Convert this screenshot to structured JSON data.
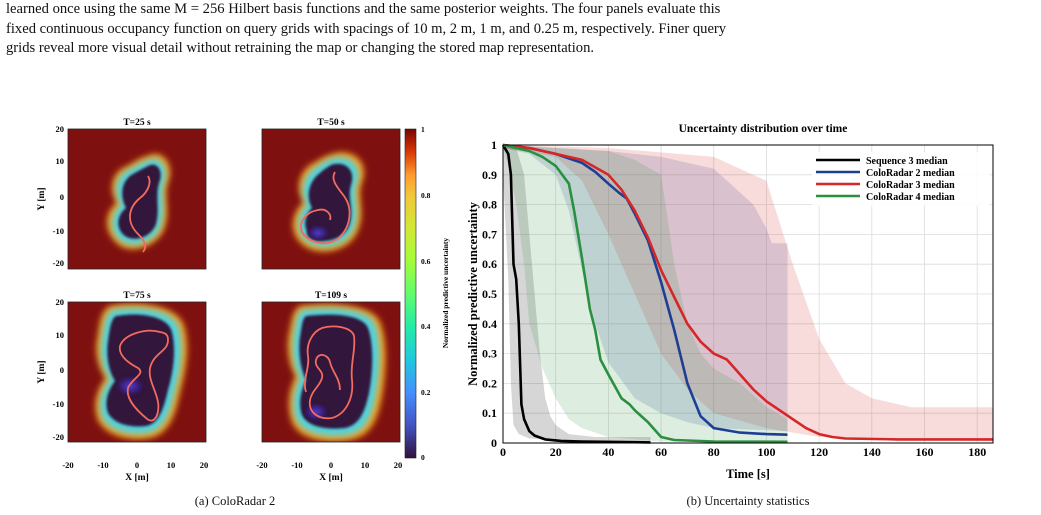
{
  "caption_lines": [
    "learned once using the same M = 256 Hilbert basis functions and the same posterior weights. The four panels evaluate this",
    "fixed continuous occupancy function on query grids with spacings of 10 m, 2 m, 1 m, and 0.25 m, respectively. Finer query",
    "grids reveal more visual detail without retraining the map or changing the stored map representation."
  ],
  "panel_a": {
    "subcaption": "(a) ColoRadar 2",
    "titles": [
      "T=25 s",
      "T=50 s",
      "T=75 s",
      "T=109 s"
    ],
    "xlabel": "X [m]",
    "ylabel": "Y [m]",
    "xticks": [
      "-20",
      "-10",
      "0",
      "10",
      "20"
    ],
    "yticks": [
      "20",
      "10",
      "0",
      "-10",
      "-20"
    ],
    "colorbar_label": "Normalized predictive uncertainty",
    "colorbar_ticks": [
      "1",
      "0.8",
      "0.6",
      "0.4",
      "0.2",
      "0"
    ]
  },
  "panel_b": {
    "subcaption": "(b) Uncertainty statistics"
  },
  "chart_data": {
    "type": "line",
    "title": "Uncertainty distribution over time",
    "xlabel": "Time [s]",
    "ylabel": "Normalized predictive uncertainty",
    "xlim": [
      0,
      186
    ],
    "ylim": [
      0,
      1
    ],
    "xticks": [
      0,
      20,
      40,
      60,
      80,
      100,
      120,
      140,
      160,
      180
    ],
    "yticks": [
      0,
      0.1,
      0.2,
      0.3,
      0.4,
      0.5,
      0.6,
      0.7,
      0.8,
      0.9,
      1
    ],
    "ytick_labels": [
      "0",
      "0.1",
      "0.2",
      "0.3",
      "0.4",
      "0.5",
      "0.6",
      "0.7",
      "0.8",
      "0.9",
      "1"
    ],
    "grid": true,
    "legend_position": "top-right",
    "series": [
      {
        "name": "Sequence 3 median",
        "color": "#000000",
        "median": [
          [
            0,
            1
          ],
          [
            2,
            0.97
          ],
          [
            3,
            0.9
          ],
          [
            4,
            0.6
          ],
          [
            5,
            0.55
          ],
          [
            6,
            0.4
          ],
          [
            7,
            0.13
          ],
          [
            8,
            0.08
          ],
          [
            10,
            0.04
          ],
          [
            12,
            0.025
          ],
          [
            16,
            0.012
          ],
          [
            22,
            0.007
          ],
          [
            30,
            0.005
          ],
          [
            56,
            0.002
          ]
        ],
        "upper": [
          [
            0,
            1
          ],
          [
            5,
            0.99
          ],
          [
            8,
            0.9
          ],
          [
            10,
            0.7
          ],
          [
            12,
            0.5
          ],
          [
            14,
            0.3
          ],
          [
            16,
            0.15
          ],
          [
            18,
            0.09
          ],
          [
            20,
            0.06
          ],
          [
            25,
            0.03
          ],
          [
            35,
            0.02
          ],
          [
            56,
            0.02
          ]
        ],
        "lower": [
          [
            0,
            0.9
          ],
          [
            2,
            0.55
          ],
          [
            3,
            0.2
          ],
          [
            4,
            0.06
          ],
          [
            6,
            0.03
          ],
          [
            10,
            0.015
          ],
          [
            20,
            0.01
          ],
          [
            56,
            0.003
          ]
        ]
      },
      {
        "name": "ColoRadar 2 median",
        "color": "#1c3f95",
        "median": [
          [
            0,
            1
          ],
          [
            10,
            0.99
          ],
          [
            20,
            0.97
          ],
          [
            30,
            0.94
          ],
          [
            35,
            0.91
          ],
          [
            40,
            0.87
          ],
          [
            44,
            0.84
          ],
          [
            47,
            0.82
          ],
          [
            50,
            0.77
          ],
          [
            55,
            0.68
          ],
          [
            60,
            0.54
          ],
          [
            65,
            0.38
          ],
          [
            70,
            0.2
          ],
          [
            75,
            0.09
          ],
          [
            80,
            0.05
          ],
          [
            90,
            0.035
          ],
          [
            100,
            0.03
          ],
          [
            108,
            0.028
          ]
        ],
        "upper": [
          [
            0,
            1
          ],
          [
            20,
            0.99
          ],
          [
            40,
            0.98
          ],
          [
            60,
            0.96
          ],
          [
            80,
            0.92
          ],
          [
            95,
            0.8
          ],
          [
            100,
            0.72
          ],
          [
            102,
            0.67
          ],
          [
            108,
            0.67
          ]
        ],
        "lower": [
          [
            0,
            0.99
          ],
          [
            10,
            0.97
          ],
          [
            20,
            0.9
          ],
          [
            25,
            0.78
          ],
          [
            30,
            0.58
          ],
          [
            35,
            0.4
          ],
          [
            40,
            0.27
          ],
          [
            50,
            0.15
          ],
          [
            60,
            0.1
          ],
          [
            70,
            0.07
          ],
          [
            80,
            0.05
          ],
          [
            108,
            0.04
          ]
        ]
      },
      {
        "name": "ColoRadar 3 median",
        "color": "#d62728",
        "median": [
          [
            0,
            1
          ],
          [
            10,
            0.99
          ],
          [
            20,
            0.97
          ],
          [
            30,
            0.95
          ],
          [
            40,
            0.9
          ],
          [
            45,
            0.85
          ],
          [
            50,
            0.78
          ],
          [
            55,
            0.69
          ],
          [
            60,
            0.58
          ],
          [
            65,
            0.49
          ],
          [
            70,
            0.4
          ],
          [
            75,
            0.34
          ],
          [
            80,
            0.3
          ],
          [
            85,
            0.28
          ],
          [
            88,
            0.25
          ],
          [
            95,
            0.18
          ],
          [
            100,
            0.14
          ],
          [
            110,
            0.08
          ],
          [
            115,
            0.05
          ],
          [
            120,
            0.03
          ],
          [
            125,
            0.02
          ],
          [
            130,
            0.015
          ],
          [
            150,
            0.012
          ],
          [
            186,
            0.012
          ]
        ],
        "upper": [
          [
            0,
            1
          ],
          [
            40,
            0.99
          ],
          [
            80,
            0.96
          ],
          [
            100,
            0.88
          ],
          [
            110,
            0.6
          ],
          [
            120,
            0.35
          ],
          [
            130,
            0.2
          ],
          [
            140,
            0.15
          ],
          [
            155,
            0.12
          ],
          [
            186,
            0.12
          ]
        ],
        "lower": [
          [
            0,
            0.99
          ],
          [
            20,
            0.96
          ],
          [
            30,
            0.88
          ],
          [
            40,
            0.7
          ],
          [
            50,
            0.5
          ],
          [
            60,
            0.3
          ],
          [
            70,
            0.18
          ],
          [
            80,
            0.1
          ],
          [
            100,
            0.05
          ],
          [
            120,
            0.02
          ],
          [
            186,
            0.005
          ]
        ]
      },
      {
        "name": "ColoRadar 4 median",
        "color": "#2a9040",
        "median": [
          [
            0,
            1
          ],
          [
            5,
            0.99
          ],
          [
            10,
            0.98
          ],
          [
            15,
            0.96
          ],
          [
            20,
            0.93
          ],
          [
            25,
            0.87
          ],
          [
            27,
            0.78
          ],
          [
            30,
            0.62
          ],
          [
            33,
            0.45
          ],
          [
            35,
            0.38
          ],
          [
            37,
            0.28
          ],
          [
            40,
            0.23
          ],
          [
            45,
            0.15
          ],
          [
            48,
            0.13
          ],
          [
            50,
            0.11
          ],
          [
            55,
            0.07
          ],
          [
            60,
            0.02
          ],
          [
            65,
            0.01
          ],
          [
            80,
            0.005
          ],
          [
            108,
            0.004
          ]
        ],
        "upper": [
          [
            0,
            1
          ],
          [
            20,
            0.99
          ],
          [
            40,
            0.98
          ],
          [
            50,
            0.95
          ],
          [
            60,
            0.9
          ],
          [
            65,
            0.6
          ],
          [
            70,
            0.4
          ],
          [
            75,
            0.3
          ],
          [
            80,
            0.25
          ],
          [
            90,
            0.2
          ],
          [
            100,
            0.12
          ],
          [
            108,
            0.08
          ]
        ],
        "lower": [
          [
            0,
            0.99
          ],
          [
            3,
            0.9
          ],
          [
            5,
            0.8
          ],
          [
            8,
            0.6
          ],
          [
            10,
            0.4
          ],
          [
            15,
            0.25
          ],
          [
            20,
            0.15
          ],
          [
            25,
            0.08
          ],
          [
            30,
            0.05
          ],
          [
            40,
            0.02
          ],
          [
            60,
            0.005
          ],
          [
            108,
            0.003
          ]
        ]
      }
    ]
  },
  "colors": {
    "heatmap_background": "#8b1212",
    "heatmap_low": "#30123b",
    "trajectory": "#f26b5e"
  }
}
